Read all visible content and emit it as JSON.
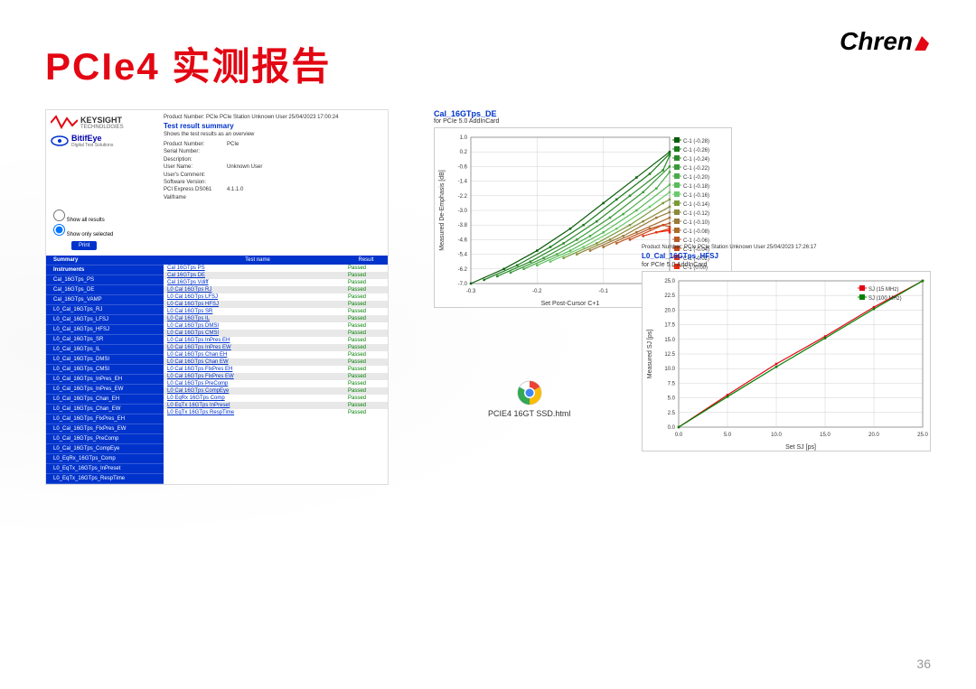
{
  "title": "PCIe4 实测报告",
  "logo": "Chren",
  "page_number": "36",
  "left": {
    "keysight": "KEYSIGHT",
    "keysight_sub": "TECHNOLOGIES",
    "bitifeye": "BitifEye",
    "bitifeye_sub": "Digital Test Solutions",
    "product_line": "Product Number: PCIe PCIe Station Unknown User 25/04/2023 17:00:24",
    "summary_title": "Test result summary",
    "summary_sub": "Shows the test results as an overview",
    "info": {
      "product_number_lbl": "Product Number:",
      "product_number": "PCIe",
      "serial_lbl": "Serial Number:",
      "serial": "",
      "desc_lbl": "Description:",
      "desc": "",
      "user_lbl": "User Name:",
      "user": "Unknown User",
      "comment_lbl": "User's Comment:",
      "comment": "",
      "sw_lbl": "Software Version:",
      "sw": "",
      "fw_lbl": "PCI Express DS061 Valiframe",
      "fw": "4.1.1.0"
    },
    "filter": {
      "all": "Show all results",
      "selected": "Show only selected"
    },
    "print": "Print",
    "nav": [
      "Summary",
      "Instruments",
      "Cal_16GTps_PS",
      "Cal_16GTps_DE",
      "Cal_16GTps_VAMP",
      "L0_Cal_16GTps_RJ",
      "L0_Cal_16GTps_LFSJ",
      "L0_Cal_16GTps_HFSJ",
      "L0_Cal_16GTps_SR",
      "L0_Cal_16GTps_IL",
      "L0_Cal_16GTps_DMSI",
      "L0_Cal_16GTps_CMSI",
      "L0_Cal_16GTps_InPres_EH",
      "L0_Cal_16GTps_InPres_EW",
      "L0_Cal_16GTps_Chan_EH",
      "L0_Cal_16GTps_Chan_EW",
      "L0_Cal_16GTps_FlxPres_EH",
      "L0_Cal_16GTps_FlxPres_EW",
      "L0_Cal_16GTps_PreComp",
      "L0_Cal_16GTps_CompEye",
      "L0_EqRx_16GTps_Comp",
      "L0_EqTx_16GTps_InPreset",
      "L0_EqTx_16GTps_RespTime"
    ],
    "table": {
      "head": {
        "c1": "Test name",
        "c2": "Result"
      },
      "rows": [
        {
          "c1": "Cal 16GTps PS",
          "c2": "Passed"
        },
        {
          "c1": "Cal 16GTps DE",
          "c2": "Passed"
        },
        {
          "c1": "Cal 16GTps Vdiff",
          "c2": "Passed"
        },
        {
          "c1": "L0 Cal 16GTps RJ",
          "c2": "Passed"
        },
        {
          "c1": "L0 Cal 16GTps LFSJ",
          "c2": "Passed"
        },
        {
          "c1": "L0 Cal 16GTps HFSJ",
          "c2": "Passed"
        },
        {
          "c1": "L0 Cal 16GTps SR",
          "c2": "Passed"
        },
        {
          "c1": "L0 Cal 16GTps IL",
          "c2": "Passed"
        },
        {
          "c1": "L0 Cal 16GTps DMSI",
          "c2": "Passed"
        },
        {
          "c1": "L0 Cal 16GTps CMSI",
          "c2": "Passed"
        },
        {
          "c1": "L0 Cal 16GTps InPres EH",
          "c2": "Passed"
        },
        {
          "c1": "L0 Cal 16GTps InPres EW",
          "c2": "Passed"
        },
        {
          "c1": "L0 Cal 16GTps Chan EH",
          "c2": "Passed"
        },
        {
          "c1": "L0 Cal 16GTps Chan EW",
          "c2": "Passed"
        },
        {
          "c1": "L0 Cal 16GTps FlxPres EH",
          "c2": "Passed"
        },
        {
          "c1": "L0 Cal 16GTps FlxPres EW",
          "c2": "Passed"
        },
        {
          "c1": "L0 Cal 16GTps PreComp",
          "c2": "Passed"
        },
        {
          "c1": "L0 Cal 16GTps CompEye",
          "c2": "Passed"
        },
        {
          "c1": "L0 EqRx 16GTps Comp",
          "c2": "Passed"
        },
        {
          "c1": "L0 EqTx 16GTps InPreset",
          "c2": "Passed"
        },
        {
          "c1": "L0 EqTx 16GTps RespTime",
          "c2": "Passed"
        }
      ]
    }
  },
  "chart1": {
    "title": "Cal_16GTps_DE",
    "subtitle": "for PCIe 5.0 AddInCard",
    "type": "line",
    "xlabel": "Set Post-Cursor C+1",
    "ylabel": "Measured De-Emphasis [dB]",
    "xlim": [
      -0.3,
      0.0
    ],
    "xticks": [
      -0.3,
      -0.2,
      -0.1,
      0.0
    ],
    "ylim": [
      -7.0,
      1.0
    ],
    "yticks": [
      1.0,
      0.2,
      -0.6,
      -1.4,
      -2.2,
      -3.0,
      -3.8,
      -4.6,
      -5.4,
      -6.2,
      -7.0
    ],
    "legend": [
      "C-1 (-0.28)",
      "C-1 (-0.26)",
      "C-1 (-0.24)",
      "C-1 (-0.22)",
      "C-1 (-0.20)",
      "C-1 (-0.18)",
      "C-1 (-0.16)",
      "C-1 (-0.14)",
      "C-1 (-0.12)",
      "C-1 (-0.10)",
      "C-1 (-0.08)",
      "C-1 (-0.06)",
      "C-1 (-0.04)",
      "C-1 (-0.02)",
      "C-1 (0.00)",
      "C-1 (0.02)"
    ],
    "legend_colors": [
      "#0a5c0a",
      "#1a7a1a",
      "#2a8a2a",
      "#3a9a3a",
      "#4aaa4a",
      "#5aba5a",
      "#6aca6a",
      "#7a9a3a",
      "#8a8a3a",
      "#9a7a3a",
      "#aa6a2a",
      "#ba5a2a",
      "#ca4a1a",
      "#da3a1a",
      "#ea2a0a",
      "#fa1a0a"
    ],
    "series_colors": [
      "#0a5c0a",
      "#1a7a1a",
      "#2a8a2a",
      "#3a9a3a",
      "#4aaa4a",
      "#5aba5a",
      "#6aca6a",
      "#7a9a3a",
      "#8a8a3a",
      "#9a7a3a",
      "#aa6a2a",
      "#ba5a2a",
      "#ca4a1a",
      "#da3a1a",
      "#ea2a0a",
      "#fa1a0a"
    ],
    "series": [
      [
        [
          -0.3,
          -7.0
        ],
        [
          -0.25,
          -6.2
        ],
        [
          -0.2,
          -5.2
        ],
        [
          -0.15,
          -4.0
        ],
        [
          -0.1,
          -2.6
        ],
        [
          -0.05,
          -1.2
        ],
        [
          0.0,
          0.2
        ]
      ],
      [
        [
          -0.28,
          -6.8
        ],
        [
          -0.23,
          -6.0
        ],
        [
          -0.18,
          -5.0
        ],
        [
          -0.13,
          -3.8
        ],
        [
          -0.08,
          -2.4
        ],
        [
          -0.03,
          -1.0
        ],
        [
          0.0,
          0.1
        ]
      ],
      [
        [
          -0.26,
          -6.6
        ],
        [
          -0.21,
          -5.8
        ],
        [
          -0.16,
          -4.8
        ],
        [
          -0.11,
          -3.6
        ],
        [
          -0.06,
          -2.2
        ],
        [
          -0.01,
          -0.8
        ],
        [
          0.0,
          0.0
        ]
      ],
      [
        [
          -0.24,
          -6.4
        ],
        [
          -0.19,
          -5.6
        ],
        [
          -0.14,
          -4.6
        ],
        [
          -0.09,
          -3.4
        ],
        [
          -0.04,
          -2.0
        ],
        [
          0.0,
          -0.6
        ]
      ],
      [
        [
          -0.22,
          -6.2
        ],
        [
          -0.17,
          -5.4
        ],
        [
          -0.12,
          -4.4
        ],
        [
          -0.07,
          -3.2
        ],
        [
          -0.02,
          -1.8
        ],
        [
          0.0,
          -0.9
        ]
      ],
      [
        [
          -0.2,
          -6.0
        ],
        [
          -0.15,
          -5.2
        ],
        [
          -0.1,
          -4.2
        ],
        [
          -0.05,
          -3.0
        ],
        [
          0.0,
          -1.6
        ]
      ],
      [
        [
          -0.18,
          -5.8
        ],
        [
          -0.13,
          -5.0
        ],
        [
          -0.08,
          -4.0
        ],
        [
          -0.03,
          -2.8
        ],
        [
          0.0,
          -2.0
        ]
      ],
      [
        [
          -0.16,
          -5.6
        ],
        [
          -0.11,
          -4.8
        ],
        [
          -0.06,
          -3.8
        ],
        [
          -0.01,
          -2.6
        ],
        [
          0.0,
          -2.4
        ]
      ],
      [
        [
          -0.14,
          -5.4
        ],
        [
          -0.09,
          -4.6
        ],
        [
          -0.04,
          -3.6
        ],
        [
          0.0,
          -2.8
        ]
      ],
      [
        [
          -0.12,
          -5.2
        ],
        [
          -0.07,
          -4.4
        ],
        [
          -0.02,
          -3.4
        ],
        [
          0.0,
          -3.1
        ]
      ],
      [
        [
          -0.1,
          -5.0
        ],
        [
          -0.05,
          -4.2
        ],
        [
          0.0,
          -3.4
        ]
      ],
      [
        [
          -0.08,
          -4.8
        ],
        [
          -0.03,
          -4.0
        ],
        [
          0.0,
          -3.7
        ]
      ],
      [
        [
          -0.06,
          -4.6
        ],
        [
          -0.01,
          -3.8
        ],
        [
          0.0,
          -3.9
        ]
      ],
      [
        [
          -0.04,
          -4.4
        ],
        [
          0.0,
          -4.0
        ]
      ],
      [
        [
          -0.02,
          -4.2
        ],
        [
          0.0,
          -4.1
        ]
      ],
      [
        [
          0.0,
          -4.2
        ]
      ]
    ],
    "grid_color": "#d0d0d0",
    "marker_size": 2.5
  },
  "chart2": {
    "product_line": "Product Number: PCIe PCIe Station Unknown User 25/04/2023 17:26:17",
    "title": "L0_Cal_16GTps_HFSJ",
    "subtitle": "for PCIe 5.0 AddInCard",
    "type": "line",
    "xlabel": "Set SJ [ps]",
    "ylabel": "Measured SJ [ps]",
    "xlim": [
      0,
      25
    ],
    "xticks": [
      0.0,
      5.0,
      10.0,
      15.0,
      20.0,
      25.0
    ],
    "ylim": [
      0,
      25
    ],
    "yticks": [
      0.0,
      2.5,
      5.0,
      7.5,
      10.0,
      12.5,
      15.0,
      17.5,
      20.0,
      22.5,
      25.0
    ],
    "legend": [
      "SJ (15 MHz)",
      "SJ (100 MHz)"
    ],
    "legend_colors": [
      "#e30613",
      "#008000"
    ],
    "series": [
      {
        "color": "#e30613",
        "points": [
          [
            0,
            0
          ],
          [
            5,
            5.5
          ],
          [
            10,
            10.8
          ],
          [
            15,
            15.5
          ],
          [
            20,
            20.5
          ],
          [
            25,
            25
          ]
        ]
      },
      {
        "color": "#008000",
        "points": [
          [
            0,
            0
          ],
          [
            5,
            5.2
          ],
          [
            10,
            10.3
          ],
          [
            15,
            15.2
          ],
          [
            20,
            20.2
          ],
          [
            25,
            25
          ]
        ]
      }
    ],
    "grid_color": "#d0d0d0",
    "marker_size": 2.5
  },
  "chrome_file": "PCIE4 16GT SSD.html"
}
